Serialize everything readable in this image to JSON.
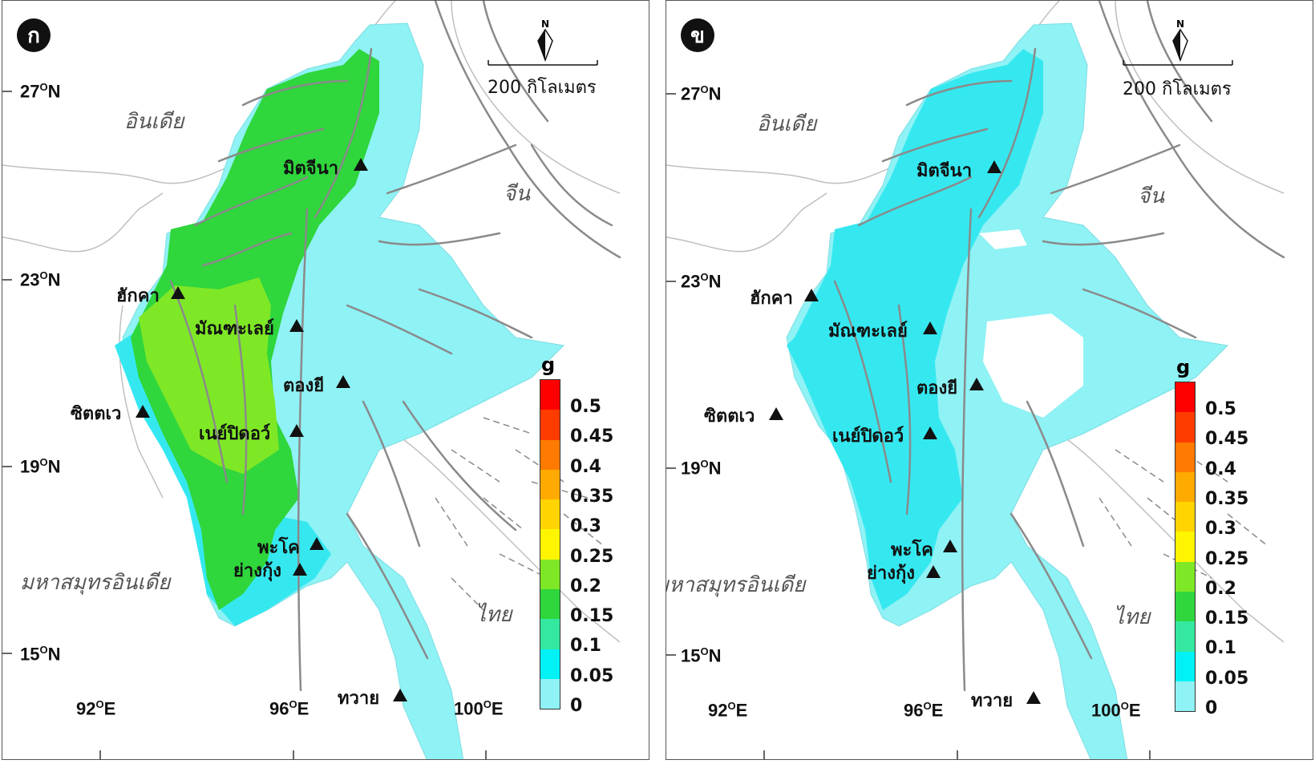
{
  "panels": [
    {
      "id": "a",
      "label": "ก",
      "scale_label": "200 กิโลเมตร",
      "north_label": "N",
      "zone_colors": {
        "outer": "#8ff2f5",
        "coast": "#35e8f0",
        "west": "#2fd63c",
        "central": "#7fe826",
        "east": "#8ff2f5"
      }
    },
    {
      "id": "b",
      "label": "ข",
      "scale_label": "200 กิโลเมตร",
      "north_label": "N",
      "zone_colors": {
        "outer": "#8ff2f5",
        "coast": "#35e8f0",
        "west": "#35e8f0",
        "central": "#35e8f0",
        "east": "#8ff2f5"
      }
    }
  ],
  "latitudes": [
    "27",
    "23",
    "19",
    "15"
  ],
  "longitudes": [
    "92",
    "96",
    "100"
  ],
  "lat_suffix": "N",
  "lon_suffix": "E",
  "degree_mark": "O",
  "countries": {
    "india": "อินเดีย",
    "china": "จีน",
    "indian_ocean": "มหาสมุทรอินเดีย",
    "thailand": "ไทย"
  },
  "cities": [
    {
      "key": "myitkyina",
      "name": "มิตจีนา"
    },
    {
      "key": "hakha",
      "name": "ฮักคา"
    },
    {
      "key": "mandalay",
      "name": "มัณฑะเลย์"
    },
    {
      "key": "taunggyi",
      "name": "ตองยี"
    },
    {
      "key": "sittwe",
      "name": "ซิตตเว"
    },
    {
      "key": "naypyidaw",
      "name": "เนย์ปิดอว์"
    },
    {
      "key": "bago",
      "name": "พะโค"
    },
    {
      "key": "yangon",
      "name": "ย่างกุ้ง"
    },
    {
      "key": "dawei",
      "name": "ทวาย"
    }
  ],
  "legend": {
    "unit": "g",
    "labels": [
      "0.5",
      "0.45",
      "0.4",
      "0.35",
      "0.3",
      "0.25",
      "0.2",
      "0.15",
      "0.1",
      "0.05",
      "0"
    ],
    "colors": [
      "#ff0000",
      "#ff3c00",
      "#ff7a00",
      "#ffaa00",
      "#ffd400",
      "#fff500",
      "#7fe826",
      "#2fd63c",
      "#35e8a0",
      "#00f2f5",
      "#8ff2f5",
      "#ffffff"
    ]
  }
}
